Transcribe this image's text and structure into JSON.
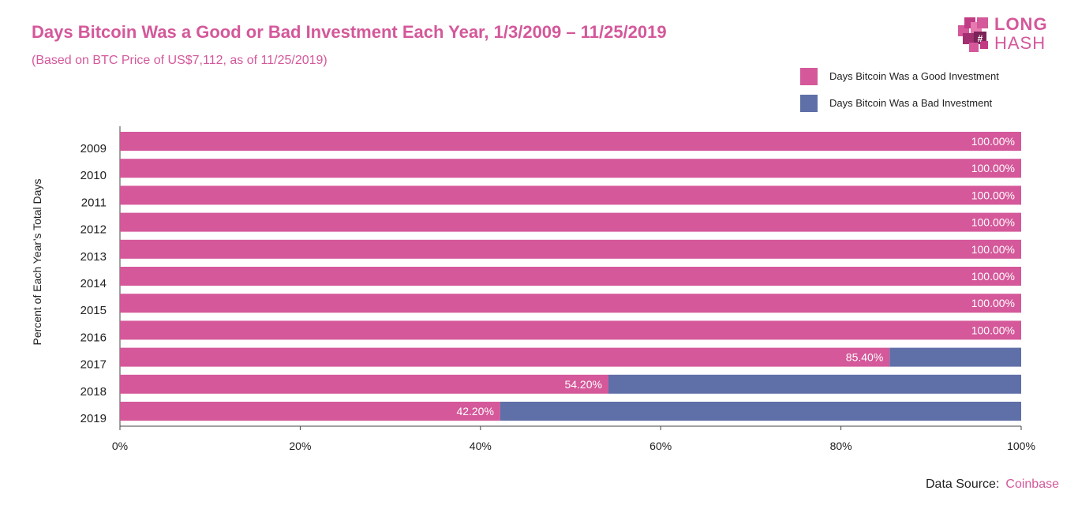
{
  "chart_data": {
    "type": "bar",
    "orientation": "horizontal",
    "stacked": true,
    "title": "Days Bitcoin Was a Good or Bad Investment Each Year, 1/3/2009 – 11/25/2019",
    "subtitle": "(Based on BTC Price of US$7,112, as of 11/25/2019)",
    "ylabel": "Percent of Each Year’s Total Days",
    "xlabel": "",
    "xlim": [
      0,
      100
    ],
    "x_ticks": [
      "0%",
      "20%",
      "40%",
      "60%",
      "80%",
      "100%"
    ],
    "categories": [
      "2009",
      "2010",
      "2011",
      "2012",
      "2013",
      "2014",
      "2015",
      "2016",
      "2017",
      "2018",
      "2019"
    ],
    "series": [
      {
        "name": "Days Bitcoin Was a Good Investment",
        "color": "#d4589a",
        "values": [
          100,
          100,
          100,
          100,
          100,
          100,
          100,
          100,
          85.4,
          54.2,
          42.2
        ],
        "data_labels": [
          "100.00%",
          "100.00%",
          "100.00%",
          "100.00%",
          "100.00%",
          "100.00%",
          "100.00%",
          "100.00%",
          "85.40%",
          "54.20%",
          "42.20%"
        ]
      },
      {
        "name": "Days Bitcoin Was a Bad Investment",
        "color": "#5f6fa8",
        "values": [
          0,
          0,
          0,
          0,
          0,
          0,
          0,
          0,
          14.6,
          45.8,
          57.8
        ]
      }
    ],
    "legend_position": "top-right",
    "grid": false
  },
  "logo": {
    "top": "LONG",
    "bottom": "HASH",
    "color": "#d4589a"
  },
  "source": {
    "label": "Data Source:",
    "value": "Coinbase"
  }
}
